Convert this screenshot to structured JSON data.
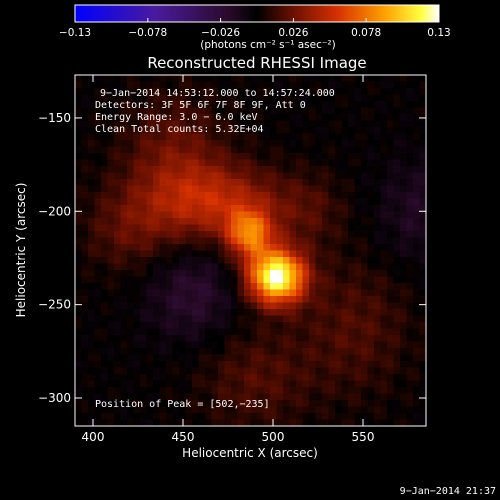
{
  "chart_data": {
    "type": "heatmap",
    "title": "Reconstructed RHESSI Image",
    "xlabel": "Heliocentric X (arcsec)",
    "ylabel": "Heliocentric Y (arcsec)",
    "xlim": [
      390,
      585
    ],
    "ylim": [
      -315,
      -127
    ],
    "x_ticks": [
      {
        "value": 400,
        "label": "400"
      },
      {
        "value": 450,
        "label": "450"
      },
      {
        "value": 500,
        "label": "500"
      },
      {
        "value": 550,
        "label": "550"
      }
    ],
    "y_ticks": [
      {
        "value": -150,
        "label": "−150"
      },
      {
        "value": -200,
        "label": "−200"
      },
      {
        "value": -250,
        "label": "−250"
      },
      {
        "value": -300,
        "label": "−300"
      }
    ],
    "annotations": [
      "9−Jan−2014 14:53:12.000 to 14:57:24.000",
      "Detectors: 3F 5F 6F 7F 8F 9F, Att 0",
      "Energy Range: 3.0 − 6.0 keV",
      "Clean    Total counts: 5.32E+04"
    ],
    "peak_label": "Position of Peak = [502,−235]",
    "peak": {
      "x": 502,
      "y": -235,
      "value": 0.13
    },
    "colorbar": {
      "range": [
        -0.13,
        0.13
      ],
      "colormap": "blue-purple-red-yellow-white",
      "ticks": [
        {
          "value": -0.13,
          "label": "−0.13"
        },
        {
          "value": -0.078,
          "label": "−0.078"
        },
        {
          "value": -0.026,
          "label": "−0.026"
        },
        {
          "value": 0.026,
          "label": "0.026"
        },
        {
          "value": 0.078,
          "label": "0.078"
        },
        {
          "value": 0.13,
          "label": "0.13"
        }
      ],
      "unit_label": "(photons cm⁻² s⁻¹ asec⁻²)"
    },
    "sources": [
      {
        "x": 502,
        "y": -235,
        "sx": 11,
        "sy": 10,
        "amp": 0.13
      },
      {
        "x": 487,
        "y": -212,
        "sx": 9,
        "sy": 9,
        "amp": 0.07
      },
      {
        "x": 468,
        "y": -195,
        "sx": 26,
        "sy": 14,
        "amp": 0.045
      },
      {
        "x": 445,
        "y": -170,
        "sx": 20,
        "sy": 22,
        "amp": 0.025
      },
      {
        "x": 420,
        "y": -210,
        "sx": 18,
        "sy": 16,
        "amp": 0.02
      },
      {
        "x": 490,
        "y": -290,
        "sx": 22,
        "sy": 20,
        "amp": 0.018
      },
      {
        "x": 545,
        "y": -262,
        "sx": 22,
        "sy": 26,
        "amp": 0.018
      },
      {
        "x": 455,
        "y": -245,
        "sx": 18,
        "sy": 18,
        "amp": -0.022
      },
      {
        "x": 580,
        "y": -200,
        "sx": 16,
        "sy": 20,
        "amp": -0.016
      },
      {
        "x": 520,
        "y": -200,
        "sx": 14,
        "sy": 14,
        "amp": 0.015
      }
    ],
    "grid": false
  },
  "footer_timestamp": "9−Jan−2014 21:37"
}
